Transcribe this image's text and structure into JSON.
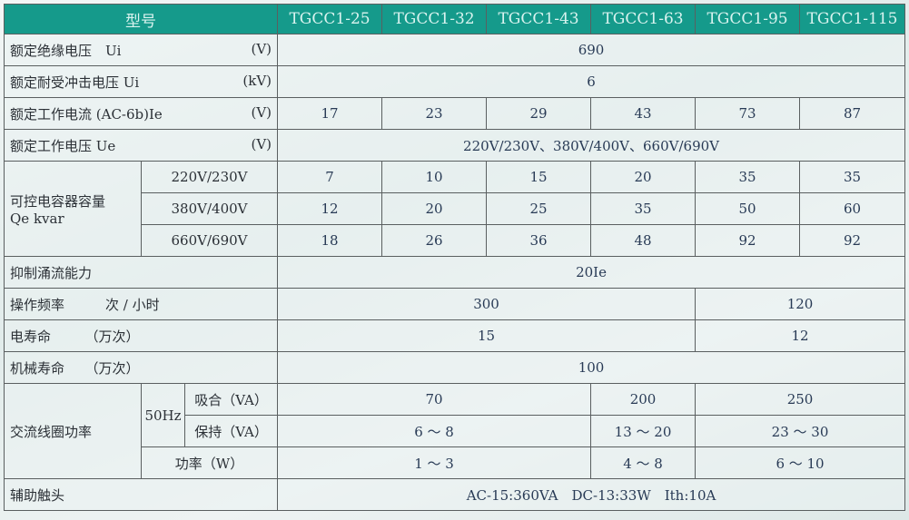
{
  "header": {
    "label": "型号",
    "models": [
      "TGCC1-25",
      "TGCC1-32",
      "TGCC1-43",
      "TGCC1-63",
      "TGCC1-95",
      "TGCC1-115"
    ]
  },
  "rows": {
    "ui": {
      "label": "额定绝缘电压　Ui",
      "unit": "(V)",
      "value": "690"
    },
    "uimp": {
      "label": "额定耐受冲击电压 Ui",
      "unit": "(kV)",
      "value": "6"
    },
    "ie": {
      "label": "额定工作电流 (AC-6b)Ie",
      "unit": "(V)",
      "values": [
        "17",
        "23",
        "29",
        "43",
        "73",
        "87"
      ]
    },
    "ue": {
      "label": "额定工作电压 Ue",
      "unit": "(V)",
      "value": "220V/230V、380V/400V、660V/690V"
    },
    "capacity": {
      "label": "可控电容器容量",
      "label2": "Qe kvar",
      "rows": [
        {
          "voltage": "220V/230V",
          "values": [
            "7",
            "10",
            "15",
            "20",
            "35",
            "35"
          ]
        },
        {
          "voltage": "380V/400V",
          "values": [
            "12",
            "20",
            "25",
            "35",
            "50",
            "60"
          ]
        },
        {
          "voltage": "660V/690V",
          "values": [
            "18",
            "26",
            "36",
            "48",
            "92",
            "92"
          ]
        }
      ]
    },
    "inrush": {
      "label": "抑制涌流能力",
      "value": "20Ie"
    },
    "freq": {
      "label": "操作频率",
      "unit": "次 / 小时",
      "values": [
        "300",
        "120"
      ]
    },
    "elec_life": {
      "label": "电寿命",
      "unit": "（万次）",
      "values": [
        "15",
        "12"
      ]
    },
    "mech_life": {
      "label": "机械寿命",
      "unit": "（万次）",
      "value": "100"
    },
    "coil": {
      "label": "交流线圈功率",
      "freq": "50Hz",
      "pull": {
        "label": "吸合（VA）",
        "values": [
          "70",
          "200",
          "250"
        ]
      },
      "hold": {
        "label": "保持（VA）",
        "values": [
          "6 ～ 8",
          "13 ～ 20",
          "23 ～ 30"
        ]
      },
      "power": {
        "label": "功率（W）",
        "values": [
          "1 ～ 3",
          "4 ～ 8",
          "6 ～ 10"
        ]
      }
    },
    "aux": {
      "label": "辅助触头",
      "value": "AC-15:360VA　DC-13:33W　Ith:10A"
    }
  }
}
